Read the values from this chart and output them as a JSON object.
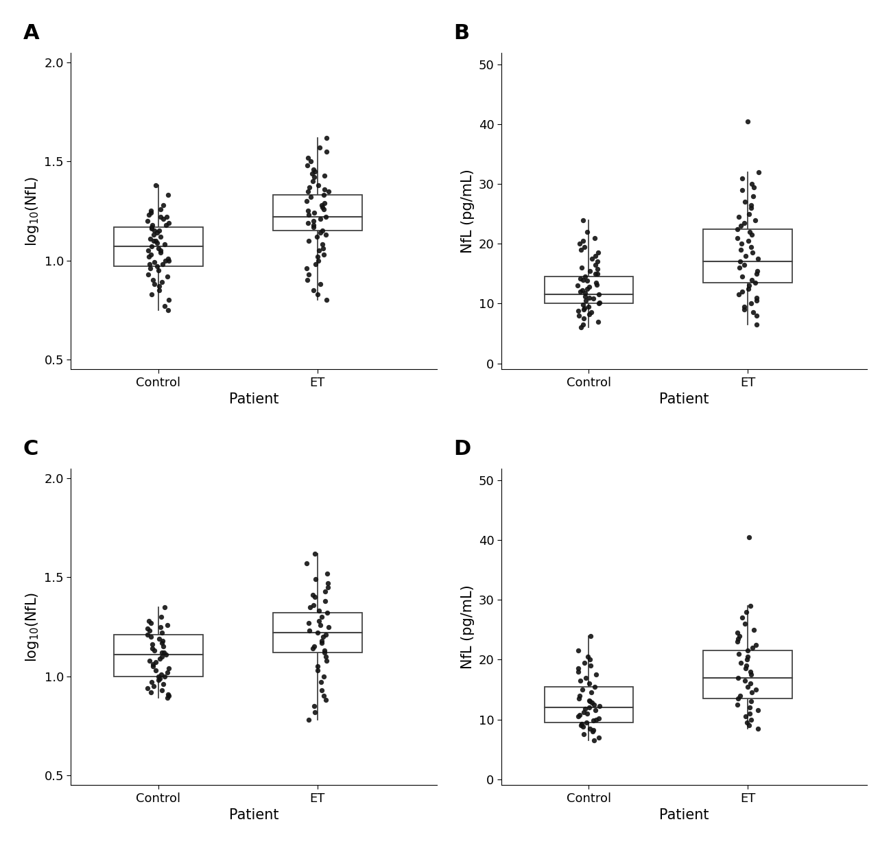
{
  "panels": [
    {
      "label": "A",
      "ylabel": "log$_{10}$(NfL)",
      "xlabel": "Patient",
      "ylim": [
        0.45,
        2.05
      ],
      "yticks": [
        0.5,
        1.0,
        1.5,
        2.0
      ],
      "ytick_labels": [
        "0.5",
        "1.0",
        "1.5",
        "2.0"
      ],
      "groups": [
        "Control",
        "ET"
      ],
      "control_data": [
        1.38,
        1.33,
        1.28,
        1.26,
        1.25,
        1.24,
        1.23,
        1.22,
        1.22,
        1.21,
        1.2,
        1.19,
        1.18,
        1.18,
        1.17,
        1.16,
        1.15,
        1.15,
        1.14,
        1.13,
        1.12,
        1.11,
        1.1,
        1.1,
        1.09,
        1.08,
        1.07,
        1.06,
        1.05,
        1.05,
        1.04,
        1.03,
        1.02,
        1.01,
        1.0,
        1.0,
        0.99,
        0.98,
        0.98,
        0.97,
        0.96,
        0.95,
        0.93,
        0.92,
        0.9,
        0.89,
        0.88,
        0.87,
        0.85,
        0.83,
        0.8,
        0.77,
        0.75
      ],
      "et_data": [
        1.62,
        1.57,
        1.55,
        1.52,
        1.5,
        1.48,
        1.46,
        1.45,
        1.44,
        1.43,
        1.42,
        1.4,
        1.38,
        1.37,
        1.36,
        1.35,
        1.35,
        1.33,
        1.32,
        1.3,
        1.29,
        1.28,
        1.27,
        1.26,
        1.25,
        1.24,
        1.23,
        1.22,
        1.21,
        1.2,
        1.19,
        1.18,
        1.17,
        1.15,
        1.14,
        1.13,
        1.12,
        1.1,
        1.08,
        1.06,
        1.05,
        1.03,
        1.02,
        1.0,
        0.98,
        0.96,
        0.93,
        0.9,
        0.88,
        0.85,
        0.83,
        0.8
      ],
      "control_box": {
        "q1": 0.97,
        "median": 1.07,
        "q3": 1.17,
        "whislo": 0.75,
        "whishi": 1.38
      },
      "et_box": {
        "q1": 1.15,
        "median": 1.22,
        "q3": 1.33,
        "whislo": 0.8,
        "whishi": 1.62
      }
    },
    {
      "label": "B",
      "ylabel": "NfL (pg/mL)",
      "xlabel": "Patient",
      "ylim": [
        -1,
        52
      ],
      "yticks": [
        0,
        10,
        20,
        30,
        40,
        50
      ],
      "ytick_labels": [
        "0",
        "10",
        "20",
        "30",
        "40",
        "50"
      ],
      "groups": [
        "Control",
        "ET"
      ],
      "control_data": [
        24.0,
        22.0,
        21.0,
        20.5,
        20.0,
        19.5,
        19.0,
        18.5,
        18.0,
        17.5,
        17.0,
        16.5,
        16.0,
        15.8,
        15.5,
        15.0,
        15.0,
        14.5,
        14.2,
        14.0,
        13.8,
        13.5,
        13.2,
        13.0,
        12.8,
        12.5,
        12.2,
        12.0,
        11.8,
        11.5,
        11.2,
        11.0,
        10.8,
        10.5,
        10.2,
        10.0,
        9.8,
        9.5,
        9.2,
        9.0,
        8.8,
        8.5,
        8.2,
        8.0,
        7.5,
        7.0,
        6.5,
        6.0
      ],
      "et_data": [
        40.5,
        32.0,
        31.0,
        30.0,
        29.5,
        29.0,
        28.0,
        27.0,
        26.5,
        26.0,
        25.0,
        24.5,
        24.0,
        23.5,
        23.0,
        22.5,
        22.0,
        21.5,
        21.0,
        20.5,
        20.0,
        19.5,
        19.0,
        18.5,
        18.0,
        17.5,
        17.0,
        16.5,
        16.0,
        15.5,
        15.0,
        14.5,
        14.0,
        13.5,
        13.0,
        12.5,
        12.0,
        11.5,
        11.0,
        10.5,
        10.0,
        9.5,
        9.0,
        8.5,
        8.0,
        6.5
      ],
      "control_box": {
        "q1": 10.0,
        "median": 11.5,
        "q3": 14.5,
        "whislo": 6.0,
        "whishi": 24.0
      },
      "et_box": {
        "q1": 13.5,
        "median": 17.0,
        "q3": 22.5,
        "whislo": 6.5,
        "whishi": 32.0
      }
    },
    {
      "label": "C",
      "ylabel": "log$_{10}$(NfL)",
      "xlabel": "Patient",
      "ylim": [
        0.45,
        2.05
      ],
      "yticks": [
        0.5,
        1.0,
        1.5,
        2.0
      ],
      "ytick_labels": [
        "0.5",
        "1.0",
        "1.5",
        "2.0"
      ],
      "groups": [
        "Control",
        "ET"
      ],
      "control_data": [
        1.35,
        1.3,
        1.28,
        1.27,
        1.26,
        1.25,
        1.24,
        1.23,
        1.22,
        1.21,
        1.2,
        1.19,
        1.18,
        1.17,
        1.16,
        1.15,
        1.14,
        1.13,
        1.12,
        1.12,
        1.11,
        1.1,
        1.09,
        1.08,
        1.07,
        1.06,
        1.05,
        1.04,
        1.03,
        1.02,
        1.01,
        1.0,
        1.0,
        0.99,
        0.98,
        0.97,
        0.96,
        0.95,
        0.94,
        0.93,
        0.92,
        0.91,
        0.9,
        0.89
      ],
      "et_data": [
        1.62,
        1.57,
        1.52,
        1.49,
        1.47,
        1.45,
        1.43,
        1.41,
        1.4,
        1.38,
        1.36,
        1.35,
        1.33,
        1.32,
        1.3,
        1.28,
        1.27,
        1.26,
        1.25,
        1.23,
        1.22,
        1.21,
        1.2,
        1.18,
        1.17,
        1.15,
        1.14,
        1.13,
        1.12,
        1.1,
        1.08,
        1.05,
        1.03,
        1.0,
        0.97,
        0.93,
        0.9,
        0.88,
        0.85,
        0.82,
        0.78
      ],
      "control_box": {
        "q1": 1.0,
        "median": 1.11,
        "q3": 1.21,
        "whislo": 0.89,
        "whishi": 1.35
      },
      "et_box": {
        "q1": 1.12,
        "median": 1.22,
        "q3": 1.32,
        "whislo": 0.78,
        "whishi": 1.62
      }
    },
    {
      "label": "D",
      "ylabel": "NfL (pg/mL)",
      "xlabel": "Patient",
      "ylim": [
        -1,
        52
      ],
      "yticks": [
        0,
        10,
        20,
        30,
        40,
        50
      ],
      "ytick_labels": [
        "0",
        "10",
        "20",
        "30",
        "40",
        "50"
      ],
      "groups": [
        "Control",
        "ET"
      ],
      "control_data": [
        24.0,
        21.5,
        20.5,
        20.0,
        19.5,
        19.0,
        18.5,
        18.0,
        17.5,
        17.0,
        16.5,
        16.0,
        15.5,
        15.0,
        14.5,
        14.0,
        13.5,
        13.2,
        13.0,
        12.8,
        12.5,
        12.2,
        12.0,
        11.8,
        11.5,
        11.2,
        11.0,
        10.8,
        10.5,
        10.2,
        10.0,
        9.8,
        9.5,
        9.2,
        9.0,
        8.8,
        8.5,
        8.2,
        8.0,
        7.5,
        7.0,
        6.5
      ],
      "et_data": [
        40.5,
        29.0,
        28.0,
        27.0,
        26.0,
        25.0,
        24.5,
        24.0,
        23.5,
        23.0,
        22.5,
        22.0,
        21.5,
        21.0,
        20.5,
        20.0,
        19.5,
        19.0,
        18.5,
        18.0,
        17.5,
        17.0,
        16.5,
        16.0,
        15.5,
        15.0,
        14.5,
        14.0,
        13.5,
        13.0,
        12.5,
        12.0,
        11.5,
        11.0,
        10.5,
        10.0,
        9.5,
        9.0,
        8.5
      ],
      "control_box": {
        "q1": 9.5,
        "median": 12.0,
        "q3": 15.5,
        "whislo": 6.5,
        "whishi": 24.0
      },
      "et_box": {
        "q1": 13.5,
        "median": 17.0,
        "q3": 21.5,
        "whislo": 8.5,
        "whishi": 29.0
      }
    }
  ],
  "box_color": "#444444",
  "dot_color": "#111111",
  "dot_size": 28,
  "dot_alpha": 0.9,
  "box_width": 0.28,
  "jitter_strength": 0.07,
  "font_size": 13,
  "label_font_size": 22,
  "axis_label_font_size": 15,
  "tick_font_size": 13
}
